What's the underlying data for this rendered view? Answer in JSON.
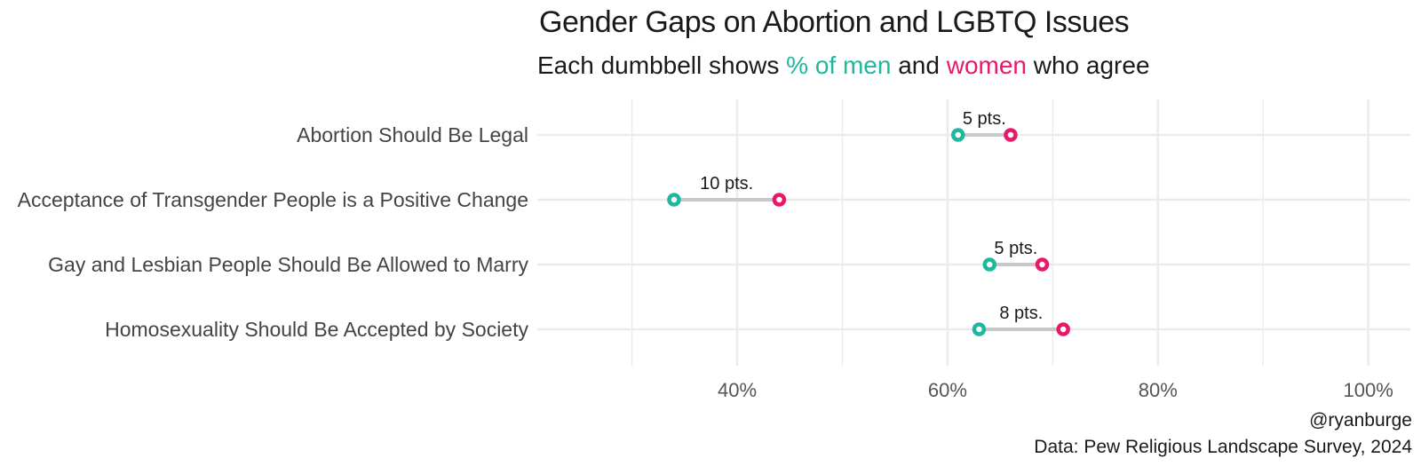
{
  "chart_data": {
    "type": "dumbbell",
    "title": "Gender Gaps on Abortion and LGBTQ Issues",
    "subtitle": {
      "prefix": "Each dumbbell shows ",
      "men_label": "% of men",
      "middle": " and ",
      "women_label": "women",
      "suffix": " who agree"
    },
    "categories": [
      "Abortion Should Be Legal",
      "Acceptance of Transgender People is a Positive Change",
      "Gay and Lesbian People Should Be Allowed to Marry",
      "Homosexuality Should Be Accepted by Society"
    ],
    "series": [
      {
        "name": "% of men",
        "values": [
          61,
          34,
          64,
          63
        ]
      },
      {
        "name": "women",
        "values": [
          66,
          44,
          69,
          71
        ]
      }
    ],
    "gap_labels": [
      "5 pts.",
      "10 pts.",
      "5 pts.",
      "8 pts."
    ],
    "xlim": [
      21,
      104
    ],
    "x_ticks": [
      40,
      60,
      80,
      100
    ],
    "x_tick_labels": [
      "40%",
      "60%",
      "80%",
      "100%"
    ],
    "grid": true,
    "colors": {
      "men": "#1db89e",
      "women": "#e8186a",
      "connector": "#c8c8c8",
      "grid": "#ebebeb"
    },
    "caption": [
      "@ryanburge",
      "Data: Pew Religious Landscape Survey, 2024"
    ]
  }
}
